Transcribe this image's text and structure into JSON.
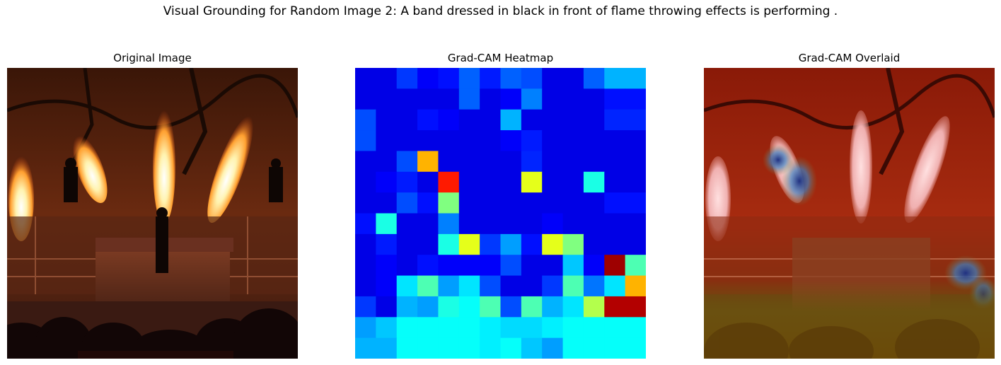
{
  "figure": {
    "title": "Visual Grounding for Random Image 2: A band dressed in black in front of flame throwing effects is performing ."
  },
  "panels": {
    "original": {
      "title": "Original Image"
    },
    "heatmap": {
      "title": "Grad-CAM Heatmap"
    },
    "overlay": {
      "title": "Grad-CAM Overlaid"
    }
  },
  "chart_data": {
    "type": "heatmap",
    "colormap": "jet",
    "rows": 14,
    "cols": 14,
    "value_range": [
      0,
      1
    ],
    "values": [
      [
        0.1,
        0.1,
        0.18,
        0.12,
        0.14,
        0.22,
        0.15,
        0.22,
        0.2,
        0.1,
        0.1,
        0.22,
        0.3,
        0.3
      ],
      [
        0.1,
        0.1,
        0.1,
        0.1,
        0.1,
        0.22,
        0.1,
        0.12,
        0.25,
        0.1,
        0.1,
        0.1,
        0.14,
        0.14
      ],
      [
        0.2,
        0.1,
        0.1,
        0.14,
        0.12,
        0.1,
        0.1,
        0.3,
        0.1,
        0.1,
        0.1,
        0.1,
        0.16,
        0.16
      ],
      [
        0.2,
        0.1,
        0.1,
        0.1,
        0.1,
        0.1,
        0.1,
        0.12,
        0.15,
        0.1,
        0.1,
        0.1,
        0.1,
        0.1
      ],
      [
        0.1,
        0.1,
        0.2,
        0.7,
        0.1,
        0.1,
        0.1,
        0.1,
        0.16,
        0.1,
        0.1,
        0.1,
        0.1,
        0.1
      ],
      [
        0.1,
        0.12,
        0.15,
        0.1,
        0.85,
        0.1,
        0.1,
        0.1,
        0.6,
        0.1,
        0.1,
        0.4,
        0.1,
        0.1
      ],
      [
        0.1,
        0.1,
        0.2,
        0.14,
        0.5,
        0.1,
        0.1,
        0.1,
        0.1,
        0.1,
        0.1,
        0.1,
        0.14,
        0.14
      ],
      [
        0.14,
        0.4,
        0.1,
        0.1,
        0.25,
        0.1,
        0.1,
        0.1,
        0.1,
        0.12,
        0.1,
        0.1,
        0.1,
        0.1
      ],
      [
        0.1,
        0.15,
        0.1,
        0.1,
        0.4,
        0.6,
        0.18,
        0.28,
        0.14,
        0.6,
        0.5,
        0.1,
        0.1,
        0.1
      ],
      [
        0.1,
        0.12,
        0.1,
        0.14,
        0.12,
        0.12,
        0.12,
        0.2,
        0.1,
        0.1,
        0.32,
        0.12,
        0.97,
        0.45
      ],
      [
        0.1,
        0.12,
        0.35,
        0.45,
        0.28,
        0.35,
        0.2,
        0.1,
        0.1,
        0.18,
        0.45,
        0.24,
        0.35,
        0.7
      ],
      [
        0.18,
        0.1,
        0.3,
        0.28,
        0.4,
        0.38,
        0.45,
        0.2,
        0.45,
        0.3,
        0.35,
        0.55,
        0.95,
        0.95
      ],
      [
        0.28,
        0.32,
        0.38,
        0.38,
        0.38,
        0.38,
        0.36,
        0.34,
        0.34,
        0.36,
        0.38,
        0.38,
        0.38,
        0.38
      ],
      [
        0.3,
        0.3,
        0.38,
        0.38,
        0.38,
        0.38,
        0.36,
        0.38,
        0.32,
        0.28,
        0.38,
        0.38,
        0.38,
        0.38
      ]
    ]
  },
  "colors": {
    "sky": "#2a1208",
    "stage": "#5a2a18",
    "flame": "#ffd070",
    "crowd": "#140806"
  }
}
